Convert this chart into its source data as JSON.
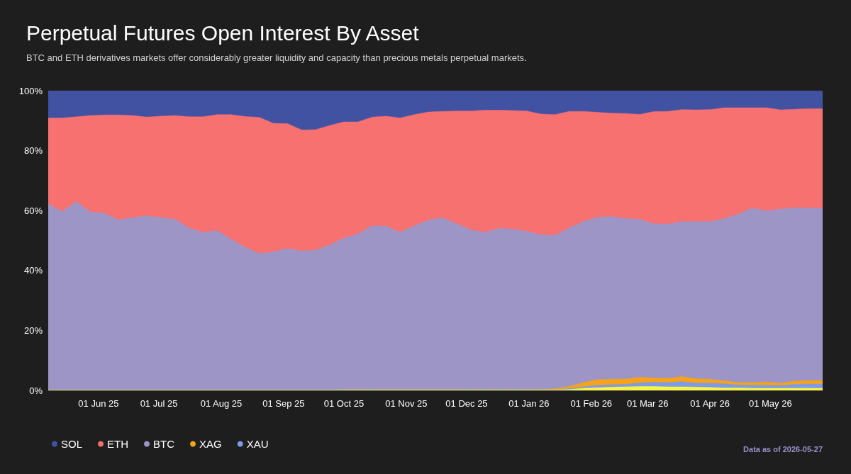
{
  "chart_data": {
    "type": "area",
    "stacked": true,
    "marker": "none",
    "legend": "bottom left",
    "title": "Perpetual Futures Open Interest By Asset",
    "subtitle": "BTC and ETH derivatives markets offer considerably greater liquidity and capacity than precious metals perpetual markets.",
    "annotations": [
      "Data as of 2026-05-27"
    ],
    "x": [
      "2025-05-07",
      "2025-05-14",
      "2025-05-21",
      "2025-05-28",
      "2025-06-04",
      "2025-06-11",
      "2025-06-18",
      "2025-06-25",
      "2025-07-02",
      "2025-07-09",
      "2025-07-16",
      "2025-07-23",
      "2025-07-30",
      "2025-08-06",
      "2025-08-13",
      "2025-08-20",
      "2025-08-27",
      "2025-09-03",
      "2025-09-10",
      "2025-09-17",
      "2025-09-24",
      "2025-10-01",
      "2025-10-08",
      "2025-10-15",
      "2025-10-22",
      "2025-10-29",
      "2025-11-05",
      "2025-11-12",
      "2025-11-19",
      "2025-11-26",
      "2025-12-03",
      "2025-12-10",
      "2025-12-17",
      "2025-12-24",
      "2025-12-31",
      "2026-01-07",
      "2026-01-14",
      "2026-01-21",
      "2026-01-28",
      "2026-02-04",
      "2026-02-11",
      "2026-02-18",
      "2026-02-25",
      "2026-03-04",
      "2026-03-11",
      "2026-03-18",
      "2026-03-25",
      "2026-04-01",
      "2026-04-08",
      "2026-04-15",
      "2026-04-22",
      "2026-04-29",
      "2026-05-06",
      "2026-05-13",
      "2026-05-20",
      "2026-05-27"
    ],
    "xlim": [
      "2025-05-07",
      "2026-05-27"
    ],
    "xticks": [
      {
        "value": "2025-06-01",
        "label": "01 Jun 25"
      },
      {
        "value": "2025-07-01",
        "label": "01 Jul 25"
      },
      {
        "value": "2025-08-01",
        "label": "01 Aug 25"
      },
      {
        "value": "2025-09-01",
        "label": "01 Sep 25"
      },
      {
        "value": "2025-10-01",
        "label": "01 Oct 25"
      },
      {
        "value": "2025-11-01",
        "label": "01 Nov 25"
      },
      {
        "value": "2025-12-01",
        "label": "01 Dec 25"
      },
      {
        "value": "2026-01-01",
        "label": "01 Jan 26"
      },
      {
        "value": "2026-02-01",
        "label": "01 Feb 26"
      },
      {
        "value": "2026-03-01",
        "label": "01 Mar 26"
      },
      {
        "value": "2026-04-01",
        "label": "01 Apr 26"
      },
      {
        "value": "2026-05-01",
        "label": "01 May 26"
      }
    ],
    "ylim": [
      0,
      100
    ],
    "yticks": [
      {
        "value": 0,
        "label": "0%"
      },
      {
        "value": 20,
        "label": "20%"
      },
      {
        "value": 40,
        "label": "40%"
      },
      {
        "value": 60,
        "label": "60%"
      },
      {
        "value": 80,
        "label": "80%"
      },
      {
        "value": 100,
        "label": "100%"
      }
    ],
    "series": [
      {
        "color": "#f9f545",
        "values": [
          0.1,
          0.1,
          0.1,
          0.1,
          0.1,
          0.1,
          0.1,
          0.1,
          0.1,
          0.1,
          0.1,
          0.1,
          0.1,
          0.1,
          0.1,
          0.1,
          0.1,
          0.1,
          0.1,
          0.1,
          0.1,
          0.2,
          0.2,
          0.2,
          0.2,
          0.2,
          0.2,
          0.2,
          0.2,
          0.2,
          0.2,
          0.2,
          0.2,
          0.2,
          0.2,
          0.2,
          0.2,
          0.3,
          0.7,
          0.9,
          1.1,
          1.2,
          1.3,
          1.3,
          1.2,
          1.2,
          1.1,
          1.0,
          0.8,
          0.8,
          0.7,
          0.7,
          0.7,
          0.7,
          0.7,
          0.7
        ]
      },
      {
        "name": "XAU",
        "color": "#7d9be8",
        "values": [
          0,
          0,
          0,
          0,
          0,
          0,
          0,
          0,
          0,
          0,
          0,
          0,
          0,
          0,
          0,
          0,
          0,
          0,
          0,
          0,
          0,
          0,
          0,
          0,
          0,
          0,
          0,
          0,
          0,
          0,
          0,
          0,
          0,
          0,
          0,
          0,
          0.1,
          0.3,
          0.5,
          0.8,
          0.8,
          0.8,
          1.2,
          1.4,
          1.4,
          1.7,
          1.3,
          1.4,
          1.4,
          1.0,
          1.0,
          1.0,
          0.9,
          1.3,
          1.4,
          1.4
        ]
      },
      {
        "name": "XAG",
        "color": "#f5a31a",
        "values": [
          0,
          0,
          0,
          0,
          0,
          0,
          0,
          0,
          0,
          0,
          0,
          0,
          0,
          0,
          0,
          0,
          0,
          0,
          0,
          0,
          0,
          0,
          0,
          0,
          0,
          0,
          0,
          0,
          0,
          0,
          0,
          0,
          0,
          0,
          0,
          0,
          0.3,
          0.7,
          1.4,
          1.9,
          1.8,
          1.8,
          1.9,
          1.5,
          1.4,
          1.7,
          1.5,
          1.3,
          1.0,
          0.8,
          0.9,
          1.1,
          0.8,
          1.1,
          1.2,
          1.2
        ]
      },
      {
        "name": "BTC",
        "color": "#9e95c7",
        "values": [
          62.1,
          59.6,
          62.9,
          59.4,
          59.0,
          56.8,
          57.6,
          58.1,
          57.6,
          57.0,
          54.1,
          52.6,
          53.2,
          50.3,
          47.6,
          45.6,
          46.1,
          47.3,
          46.4,
          46.7,
          48.4,
          50.6,
          52.0,
          54.7,
          54.6,
          52.5,
          54.7,
          56.6,
          57.4,
          55.4,
          53.4,
          52.5,
          53.9,
          53.6,
          52.9,
          51.7,
          51.1,
          52.9,
          53.7,
          54.2,
          54.3,
          53.5,
          52.7,
          51.4,
          51.5,
          51.7,
          52.4,
          52.6,
          54.1,
          56.2,
          58.2,
          57.1,
          58.1,
          57.8,
          57.5,
          57.5
        ]
      },
      {
        "name": "ETH",
        "color": "#f87171",
        "values": [
          28.7,
          31.2,
          28.3,
          32.2,
          32.8,
          35.0,
          34.0,
          33.0,
          33.8,
          34.6,
          37.1,
          38.6,
          38.7,
          41.6,
          43.7,
          45.4,
          42.9,
          41.6,
          40.4,
          40.2,
          39.9,
          38.8,
          37.4,
          36.3,
          36.7,
          38.2,
          37.1,
          36.1,
          35.5,
          37.6,
          39.6,
          40.8,
          39.4,
          39.6,
          40.1,
          40.3,
          40.3,
          38.9,
          36.8,
          35.0,
          34.5,
          35.1,
          35.0,
          37.4,
          37.6,
          37.4,
          37.3,
          37.4,
          37.0,
          35.5,
          33.5,
          34.4,
          33.1,
          32.9,
          33.2,
          33.2
        ]
      },
      {
        "name": "SOL",
        "color": "#4152a3",
        "values": [
          9.1,
          9.1,
          8.7,
          8.3,
          8.1,
          8.1,
          8.3,
          8.8,
          8.5,
          8.3,
          8.7,
          8.7,
          8.0,
          8.0,
          8.6,
          8.9,
          10.9,
          11.0,
          13.1,
          13.0,
          11.6,
          10.4,
          10.4,
          8.8,
          8.5,
          9.1,
          8.0,
          7.1,
          6.9,
          6.8,
          6.8,
          6.5,
          6.5,
          6.6,
          6.8,
          7.8,
          8.0,
          6.9,
          6.9,
          7.2,
          7.5,
          7.6,
          7.9,
          7.0,
          6.9,
          6.3,
          6.4,
          6.3,
          5.7,
          5.7,
          5.7,
          5.7,
          6.4,
          6.2,
          6.0,
          6.0
        ]
      }
    ]
  }
}
